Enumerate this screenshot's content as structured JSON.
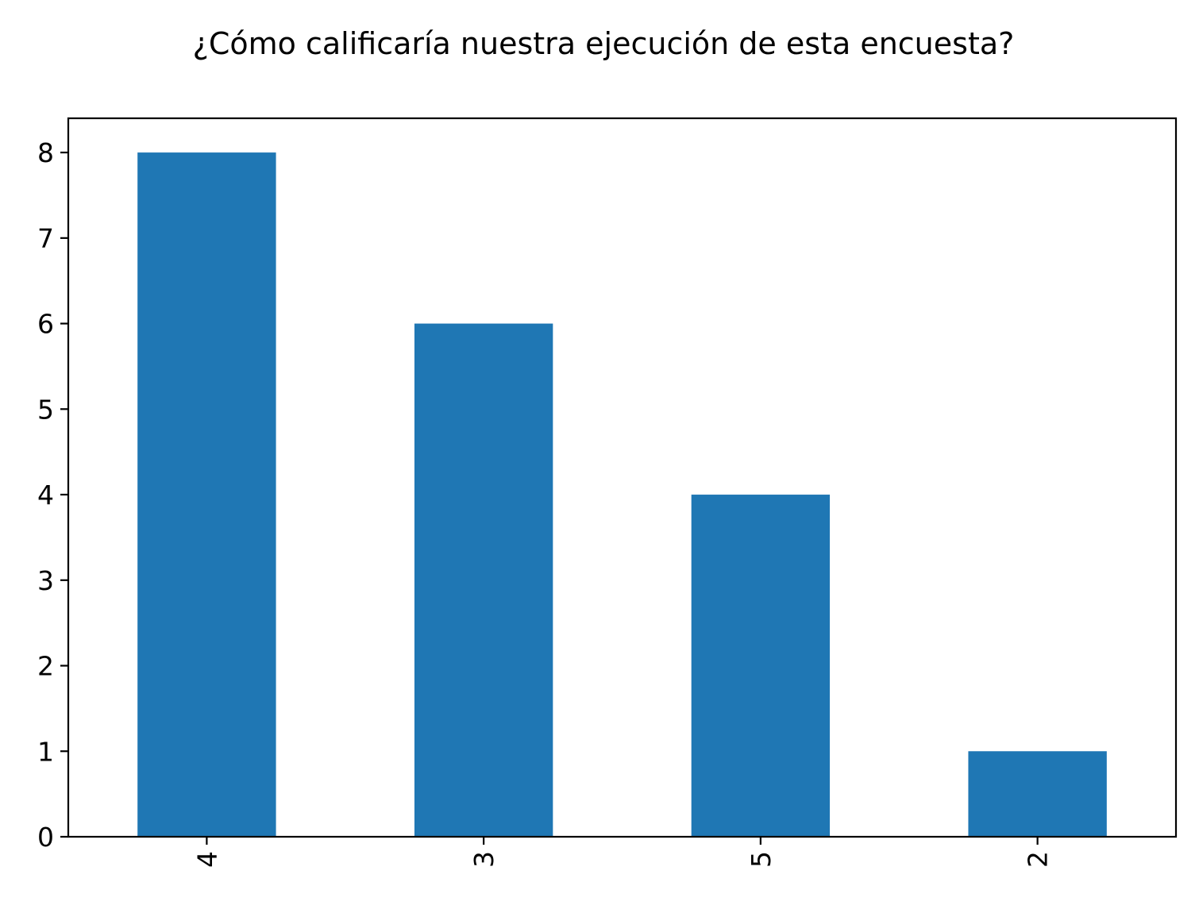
{
  "chart_data": {
    "type": "bar",
    "title": "¿Cómo calificaría nuestra ejecución de esta encuesta?",
    "xlabel": "",
    "ylabel": "",
    "categories": [
      "4",
      "3",
      "5",
      "2"
    ],
    "values": [
      8,
      6,
      4,
      1
    ],
    "ylim": [
      0,
      8.4
    ],
    "yticks": [
      0,
      1,
      2,
      3,
      4,
      5,
      6,
      7,
      8
    ],
    "grid": false,
    "legend": "none",
    "bar_color": "#1f77b4",
    "xtick_rotation": "vertical"
  }
}
